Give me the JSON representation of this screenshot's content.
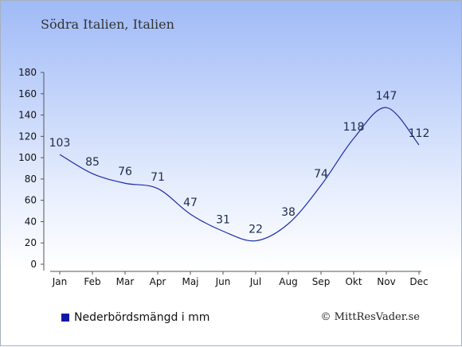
{
  "header": {
    "title": "Södra Italien, Italien"
  },
  "chart_data": {
    "type": "line",
    "title": "Södra Italien, Italien",
    "categories": [
      "Jan",
      "Feb",
      "Mar",
      "Apr",
      "Maj",
      "Jun",
      "Jul",
      "Aug",
      "Sep",
      "Okt",
      "Nov",
      "Dec"
    ],
    "series": [
      {
        "name": "Nederbördsmängd i mm",
        "values": [
          103,
          85,
          76,
          71,
          47,
          31,
          22,
          38,
          74,
          118,
          147,
          112
        ]
      }
    ],
    "ylim": [
      0,
      180
    ],
    "yticks": [
      0,
      20,
      40,
      60,
      80,
      100,
      120,
      140,
      160,
      180
    ],
    "grid": false,
    "legend": "bottom-left",
    "line_color": "#1c2ca8",
    "label_color": "#1e2a4a"
  },
  "legend": {
    "label": "Nederbördsmängd i mm",
    "color": "#0d1aa6"
  },
  "footer": {
    "credit": "© MittResVader.se"
  }
}
